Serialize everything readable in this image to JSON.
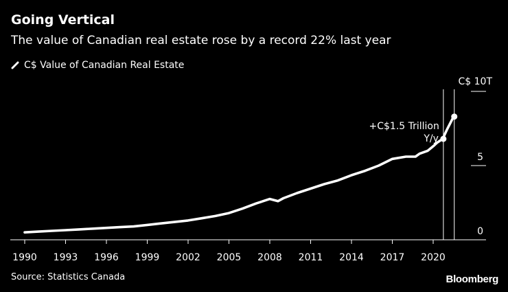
{
  "header": {
    "title": "Going Vertical",
    "subtitle": "The value of Canadian real estate rose by a record 22% last year"
  },
  "legend": {
    "label": "C$ Value of Canadian Real Estate",
    "color": "#ffffff"
  },
  "footer": {
    "source": "Source: Statistics Canada",
    "brand": "Bloomberg"
  },
  "chart_data": {
    "type": "line",
    "title": "Going Vertical",
    "subtitle": "The value of Canadian real estate rose by a record 22% last year",
    "xlabel": "",
    "ylabel": "C$ trillion",
    "xlim": [
      1990,
      2022.5
    ],
    "ylim": [
      0,
      10
    ],
    "x_ticks": [
      1990,
      1993,
      1996,
      1999,
      2002,
      2005,
      2008,
      2011,
      2014,
      2017,
      2020
    ],
    "x_tick_labels": [
      "1990",
      "1993",
      "1996",
      "1999",
      "2002",
      "2005",
      "2008",
      "2011",
      "2014",
      "2017",
      "2020"
    ],
    "y_ticks": [
      0,
      5,
      10
    ],
    "y_tick_labels": [
      "0",
      "5",
      "C$ 10T"
    ],
    "series": [
      {
        "name": "C$ Value of Canadian Real Estate",
        "color": "#ffffff",
        "x": [
          1990,
          1991,
          1992,
          1993,
          1994,
          1995,
          1996,
          1997,
          1998,
          1999,
          2000,
          2001,
          2002,
          2003,
          2004,
          2005,
          2006,
          2007,
          2008,
          2008.6,
          2009,
          2010,
          2011,
          2012,
          2013,
          2014,
          2015,
          2016,
          2017,
          2018,
          2018.7,
          2019,
          2019.6,
          2020,
          2020.3,
          2020.7,
          2021,
          2021.5
        ],
        "values": [
          0.5,
          0.55,
          0.6,
          0.65,
          0.7,
          0.75,
          0.8,
          0.85,
          0.9,
          1.0,
          1.1,
          1.2,
          1.3,
          1.45,
          1.6,
          1.8,
          2.1,
          2.45,
          2.75,
          2.6,
          2.8,
          3.15,
          3.45,
          3.75,
          4.0,
          4.35,
          4.65,
          5.0,
          5.45,
          5.6,
          5.6,
          5.8,
          6.0,
          6.3,
          6.55,
          6.8,
          7.4,
          8.3
        ]
      }
    ],
    "markers": [
      {
        "x": 2020.75,
        "value": 6.8
      },
      {
        "x": 2021.55,
        "value": 8.3
      }
    ],
    "reference_lines_x": [
      2020.75,
      2021.55
    ],
    "annotation": {
      "line1": "+C$1.5 Trillion",
      "line2": "Y/y"
    }
  }
}
